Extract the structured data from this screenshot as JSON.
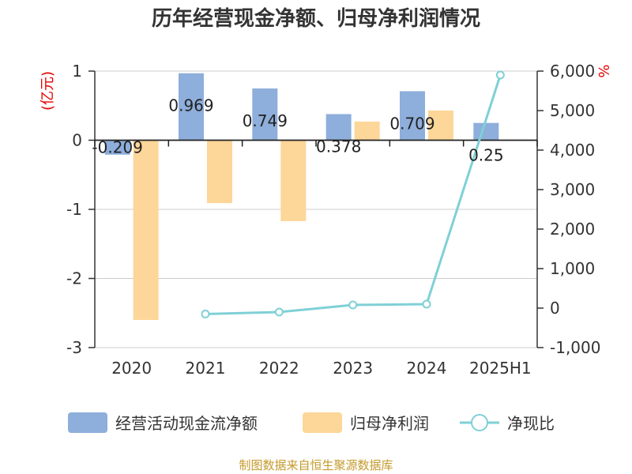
{
  "chart_data": {
    "type": "bar",
    "title": "历年经营现金净额、归母净利润情况",
    "categories": [
      "2020",
      "2021",
      "2022",
      "2023",
      "2024",
      "2025H1"
    ],
    "left_axis": {
      "unit": "(亿元)",
      "ylim": [
        -3,
        1
      ],
      "ticks": [
        "1",
        "0",
        "-1",
        "-2",
        "-3"
      ],
      "tick_values": [
        1,
        0,
        -1,
        -2,
        -3
      ]
    },
    "right_axis": {
      "unit": "%",
      "ylim": [
        -1000,
        6000
      ],
      "ticks": [
        "6,000",
        "5,000",
        "4,000",
        "3,000",
        "2,000",
        "1,000",
        "0",
        "-1,000"
      ],
      "tick_values": [
        6000,
        5000,
        4000,
        3000,
        2000,
        1000,
        0,
        -1000
      ]
    },
    "series": [
      {
        "name": "经营活动现金流净额",
        "type": "bar",
        "axis": "left",
        "color": "#8eaedb",
        "values": [
          -0.209,
          0.969,
          0.749,
          0.378,
          0.709,
          0.25
        ],
        "labels": [
          "-0.209",
          "0.969",
          "0.749",
          "0.378",
          "0.709",
          "0.25"
        ]
      },
      {
        "name": "归母净利润",
        "type": "bar",
        "axis": "left",
        "color": "#fdd699",
        "values": [
          -2.6,
          -0.91,
          -1.17,
          0.27,
          0.43,
          0.0
        ]
      },
      {
        "name": "净现比",
        "type": "line",
        "axis": "right",
        "color": "#7fd0d6",
        "values": [
          null,
          -150,
          -100,
          80,
          100,
          5900
        ]
      }
    ],
    "legend_position": "bottom",
    "grid": true
  },
  "source": "制图数据来自恒生聚源数据库"
}
